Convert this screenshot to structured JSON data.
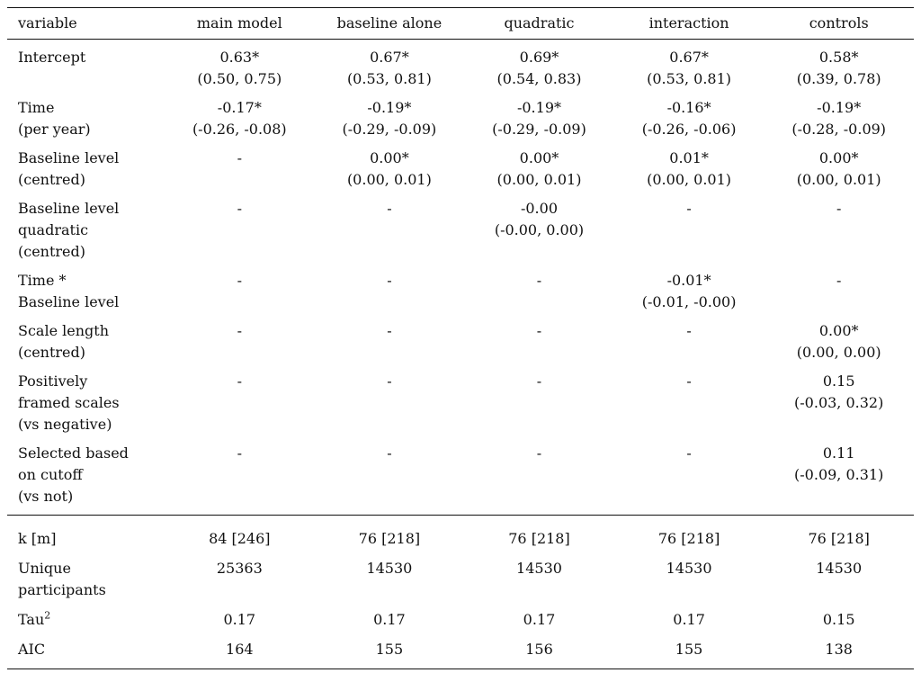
{
  "header": [
    "variable",
    "main model",
    "baseline alone",
    "quadratic",
    "interaction",
    "controls"
  ],
  "coefficients": [
    {
      "label": [
        "Intercept"
      ],
      "cells": [
        [
          "0.63*",
          "(0.50, 0.75)"
        ],
        [
          "0.67*",
          "(0.53, 0.81)"
        ],
        [
          "0.69*",
          "(0.54, 0.83)"
        ],
        [
          "0.67*",
          "(0.53, 0.81)"
        ],
        [
          "0.58*",
          "(0.39, 0.78)"
        ]
      ]
    },
    {
      "label": [
        "Time",
        "(per year)"
      ],
      "cells": [
        [
          "-0.17*",
          "(-0.26, -0.08)"
        ],
        [
          "-0.19*",
          "(-0.29, -0.09)"
        ],
        [
          "-0.19*",
          "(-0.29, -0.09)"
        ],
        [
          "-0.16*",
          "(-0.26, -0.06)"
        ],
        [
          "-0.19*",
          "(-0.28, -0.09)"
        ]
      ]
    },
    {
      "label": [
        "Baseline level",
        "(centred)"
      ],
      "cells": [
        [
          "-"
        ],
        [
          "0.00*",
          "(0.00, 0.01)"
        ],
        [
          "0.00*",
          "(0.00, 0.01)"
        ],
        [
          "0.01*",
          "(0.00, 0.01)"
        ],
        [
          "0.00*",
          "(0.00, 0.01)"
        ]
      ]
    },
    {
      "label": [
        "Baseline level",
        "quadratic",
        "(centred)"
      ],
      "cells": [
        [
          "-"
        ],
        [
          "-"
        ],
        [
          "-0.00",
          "(-0.00, 0.00)"
        ],
        [
          "-"
        ],
        [
          "-"
        ]
      ]
    },
    {
      "label": [
        "Time *",
        "Baseline level"
      ],
      "cells": [
        [
          "-"
        ],
        [
          "-"
        ],
        [
          "-"
        ],
        [
          "-0.01*",
          "(-0.01, -0.00)"
        ],
        [
          "-"
        ]
      ]
    },
    {
      "label": [
        "Scale length",
        "(centred)"
      ],
      "cells": [
        [
          "-"
        ],
        [
          "-"
        ],
        [
          "-"
        ],
        [
          "-"
        ],
        [
          "0.00*",
          "(0.00, 0.00)"
        ]
      ]
    },
    {
      "label": [
        "Positively",
        "framed scales",
        "(vs negative)"
      ],
      "cells": [
        [
          "-"
        ],
        [
          "-"
        ],
        [
          "-"
        ],
        [
          "-"
        ],
        [
          "0.15",
          "(-0.03, 0.32)"
        ]
      ]
    },
    {
      "label": [
        "Selected based",
        "on cutoff",
        "(vs not)"
      ],
      "cells": [
        [
          "-"
        ],
        [
          "-"
        ],
        [
          "-"
        ],
        [
          "-"
        ],
        [
          "0.11",
          "(-0.09, 0.31)"
        ]
      ]
    }
  ],
  "fit": [
    {
      "label": [
        "k [m]"
      ],
      "values": [
        "84 [246]",
        "76 [218]",
        "76 [218]",
        "76 [218]",
        "76 [218]"
      ]
    },
    {
      "label": [
        "Unique",
        "participants"
      ],
      "values": [
        "25363",
        "14530",
        "14530",
        "14530",
        "14530"
      ]
    },
    {
      "label": [
        "Tau"
      ],
      "sup": "2",
      "values": [
        "0.17",
        "0.17",
        "0.17",
        "0.17",
        "0.15"
      ]
    },
    {
      "label": [
        "AIC"
      ],
      "values": [
        "164",
        "155",
        "156",
        "155",
        "138"
      ]
    }
  ]
}
